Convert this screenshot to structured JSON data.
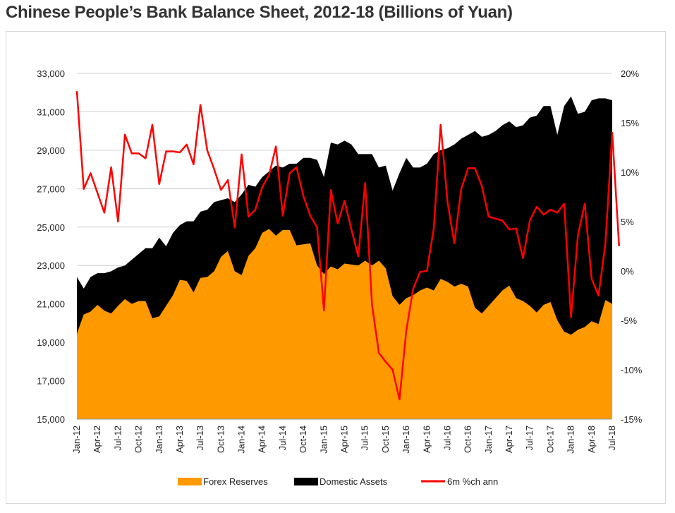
{
  "title": "Chinese People’s Bank Balance Sheet, 2012-18 (Billions of Yuan)",
  "chart_data": {
    "type": "area",
    "title": "Chinese People’s Bank Balance Sheet, 2012-18 (Billions of Yuan)",
    "x_tick_labels": [
      "Jan-12",
      "Apr-12",
      "Jul-12",
      "Oct-12",
      "Jan-13",
      "Apr-13",
      "Jul-13",
      "Oct-13",
      "Jan-14",
      "Apr-14",
      "Jul-14",
      "Oct-14",
      "Jan-15",
      "Apr-15",
      "Jul-15",
      "Oct-15",
      "Jan-16",
      "Apr-16",
      "Jul-16",
      "Oct-16",
      "Jan-17",
      "Apr-17",
      "Jul-17",
      "Oct-17",
      "Jan-18",
      "Apr-18",
      "Jul-18"
    ],
    "y_left": {
      "ticks": [
        "15,000",
        "17,000",
        "19,000",
        "21,000",
        "23,000",
        "25,000",
        "27,000",
        "29,000",
        "31,000",
        "33,000"
      ],
      "range": [
        15000,
        33000
      ]
    },
    "y_right": {
      "ticks": [
        "-15%",
        "-10%",
        "-5%",
        "0%",
        "5%",
        "10%",
        "15%",
        "20%"
      ],
      "range": [
        -15,
        20
      ]
    },
    "grid": "horizontal",
    "legend_position": "bottom",
    "series": [
      {
        "name": "Forex Reserves",
        "kind": "area",
        "color": "#ff9900",
        "axis": "left",
        "values": [
          19450,
          20450,
          20600,
          20950,
          20650,
          20500,
          20900,
          21250,
          21000,
          21150,
          21150,
          20250,
          20350,
          20900,
          21450,
          22250,
          22200,
          21600,
          22350,
          22400,
          22700,
          23450,
          23750,
          22700,
          22500,
          23500,
          23900,
          24700,
          24900,
          24550,
          24850,
          24850,
          24050,
          24100,
          24150,
          23000,
          22550,
          22950,
          22800,
          23100,
          23050,
          23000,
          23250,
          23000,
          23250,
          22850,
          21400,
          20950,
          21300,
          21450,
          21700,
          21850,
          21700,
          22300,
          22150,
          21900,
          22050,
          21900,
          20800,
          20500,
          20900,
          21300,
          21700,
          21950,
          21300,
          21150,
          20900,
          20550,
          20950,
          21100,
          20150,
          19550,
          19400,
          19650,
          19800,
          20100,
          19950,
          21200,
          21000
        ]
      },
      {
        "name": "Domestic Assets",
        "kind": "area",
        "color": "#000000",
        "axis": "left",
        "values": [
          22400,
          21800,
          22400,
          22600,
          22600,
          22700,
          22900,
          23000,
          23300,
          23600,
          23900,
          23900,
          24450,
          24000,
          24700,
          25100,
          25300,
          25300,
          25800,
          25900,
          26300,
          26400,
          26500,
          26300,
          26700,
          27200,
          27100,
          27600,
          27900,
          28200,
          28100,
          28300,
          28300,
          28600,
          28600,
          28500,
          27600,
          29400,
          29300,
          29500,
          29300,
          28800,
          28800,
          28800,
          28100,
          28200,
          26900,
          27800,
          28600,
          28100,
          28100,
          28300,
          28800,
          29000,
          29100,
          29300,
          29600,
          29800,
          30000,
          29700,
          29800,
          30000,
          30300,
          30500,
          30200,
          30300,
          30700,
          30800,
          31300,
          31300,
          29800,
          31300,
          31800,
          30900,
          31000,
          31600,
          31700,
          31700,
          31600
        ]
      },
      {
        "name": "6m %ch ann",
        "kind": "line",
        "color": "#ff0000",
        "axis": "right",
        "values": [
          18.2,
          8.3,
          9.9,
          7.9,
          5.9,
          10.5,
          5,
          13.8,
          11.9,
          11.9,
          11.4,
          14.8,
          8.8,
          12.1,
          12.1,
          12,
          12.8,
          10.8,
          16.8,
          12.2,
          10.3,
          8.2,
          9.2,
          4.4,
          11.8,
          5.5,
          6.2,
          8.5,
          9.7,
          12.6,
          5.6,
          9.9,
          10.5,
          7.6,
          5.6,
          4.4,
          -4,
          8.2,
          4.8,
          7.1,
          4.2,
          1.5,
          8.9,
          -3.4,
          -8.3,
          -9.2,
          -10,
          -13,
          -6,
          -1.8,
          -0.1,
          0,
          4.3,
          14.8,
          7,
          2.8,
          8.3,
          10.4,
          10.4,
          8.6,
          5.5,
          5.3,
          5.1,
          4.2,
          4.3,
          1.3,
          5.1,
          6.5,
          5.7,
          6.2,
          5.9,
          6.8,
          -4.7,
          3.6,
          6.8,
          -0.8,
          -2.5,
          2.7,
          14,
          2.5
        ]
      }
    ]
  }
}
